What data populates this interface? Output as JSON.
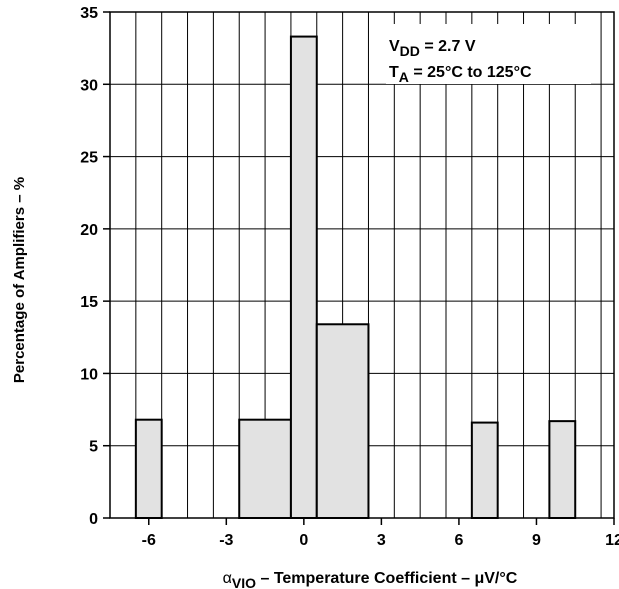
{
  "chart_data": {
    "type": "bar",
    "title": "",
    "xlabel": {
      "prefix": "α",
      "sub": "VIO",
      "rest": " – Temperature Coefficient – μV/°C"
    },
    "ylabel": "Percentage of Amplifiers – %",
    "xlim": [
      -7.5,
      12
    ],
    "ylim": [
      0,
      35
    ],
    "x_ticks": [
      "-6",
      "-3",
      "0",
      "3",
      "6",
      "9",
      "12"
    ],
    "y_ticks": [
      "0",
      "5",
      "10",
      "15",
      "20",
      "25",
      "30",
      "35"
    ],
    "grid": true,
    "annotation": {
      "line1": {
        "base": "V",
        "sub": "DD",
        "rest": " = 2.7 V"
      },
      "line2": {
        "base": "T",
        "sub": "A",
        "rest": " = 25°C to 125°C"
      }
    },
    "bins": [
      {
        "x0": -6.5,
        "x1": -5.5,
        "value": 6.8
      },
      {
        "x0": -2.5,
        "x1": -0.5,
        "value": 6.8
      },
      {
        "x0": -0.5,
        "x1": 0.5,
        "value": 33.3
      },
      {
        "x0": 0.5,
        "x1": 2.5,
        "value": 13.4
      },
      {
        "x0": 6.5,
        "x1": 7.5,
        "value": 6.6
      },
      {
        "x0": 9.5,
        "x1": 10.5,
        "value": 6.7
      }
    ],
    "bar_fill": "#e2e2e2",
    "bar_stroke": "#000000"
  }
}
